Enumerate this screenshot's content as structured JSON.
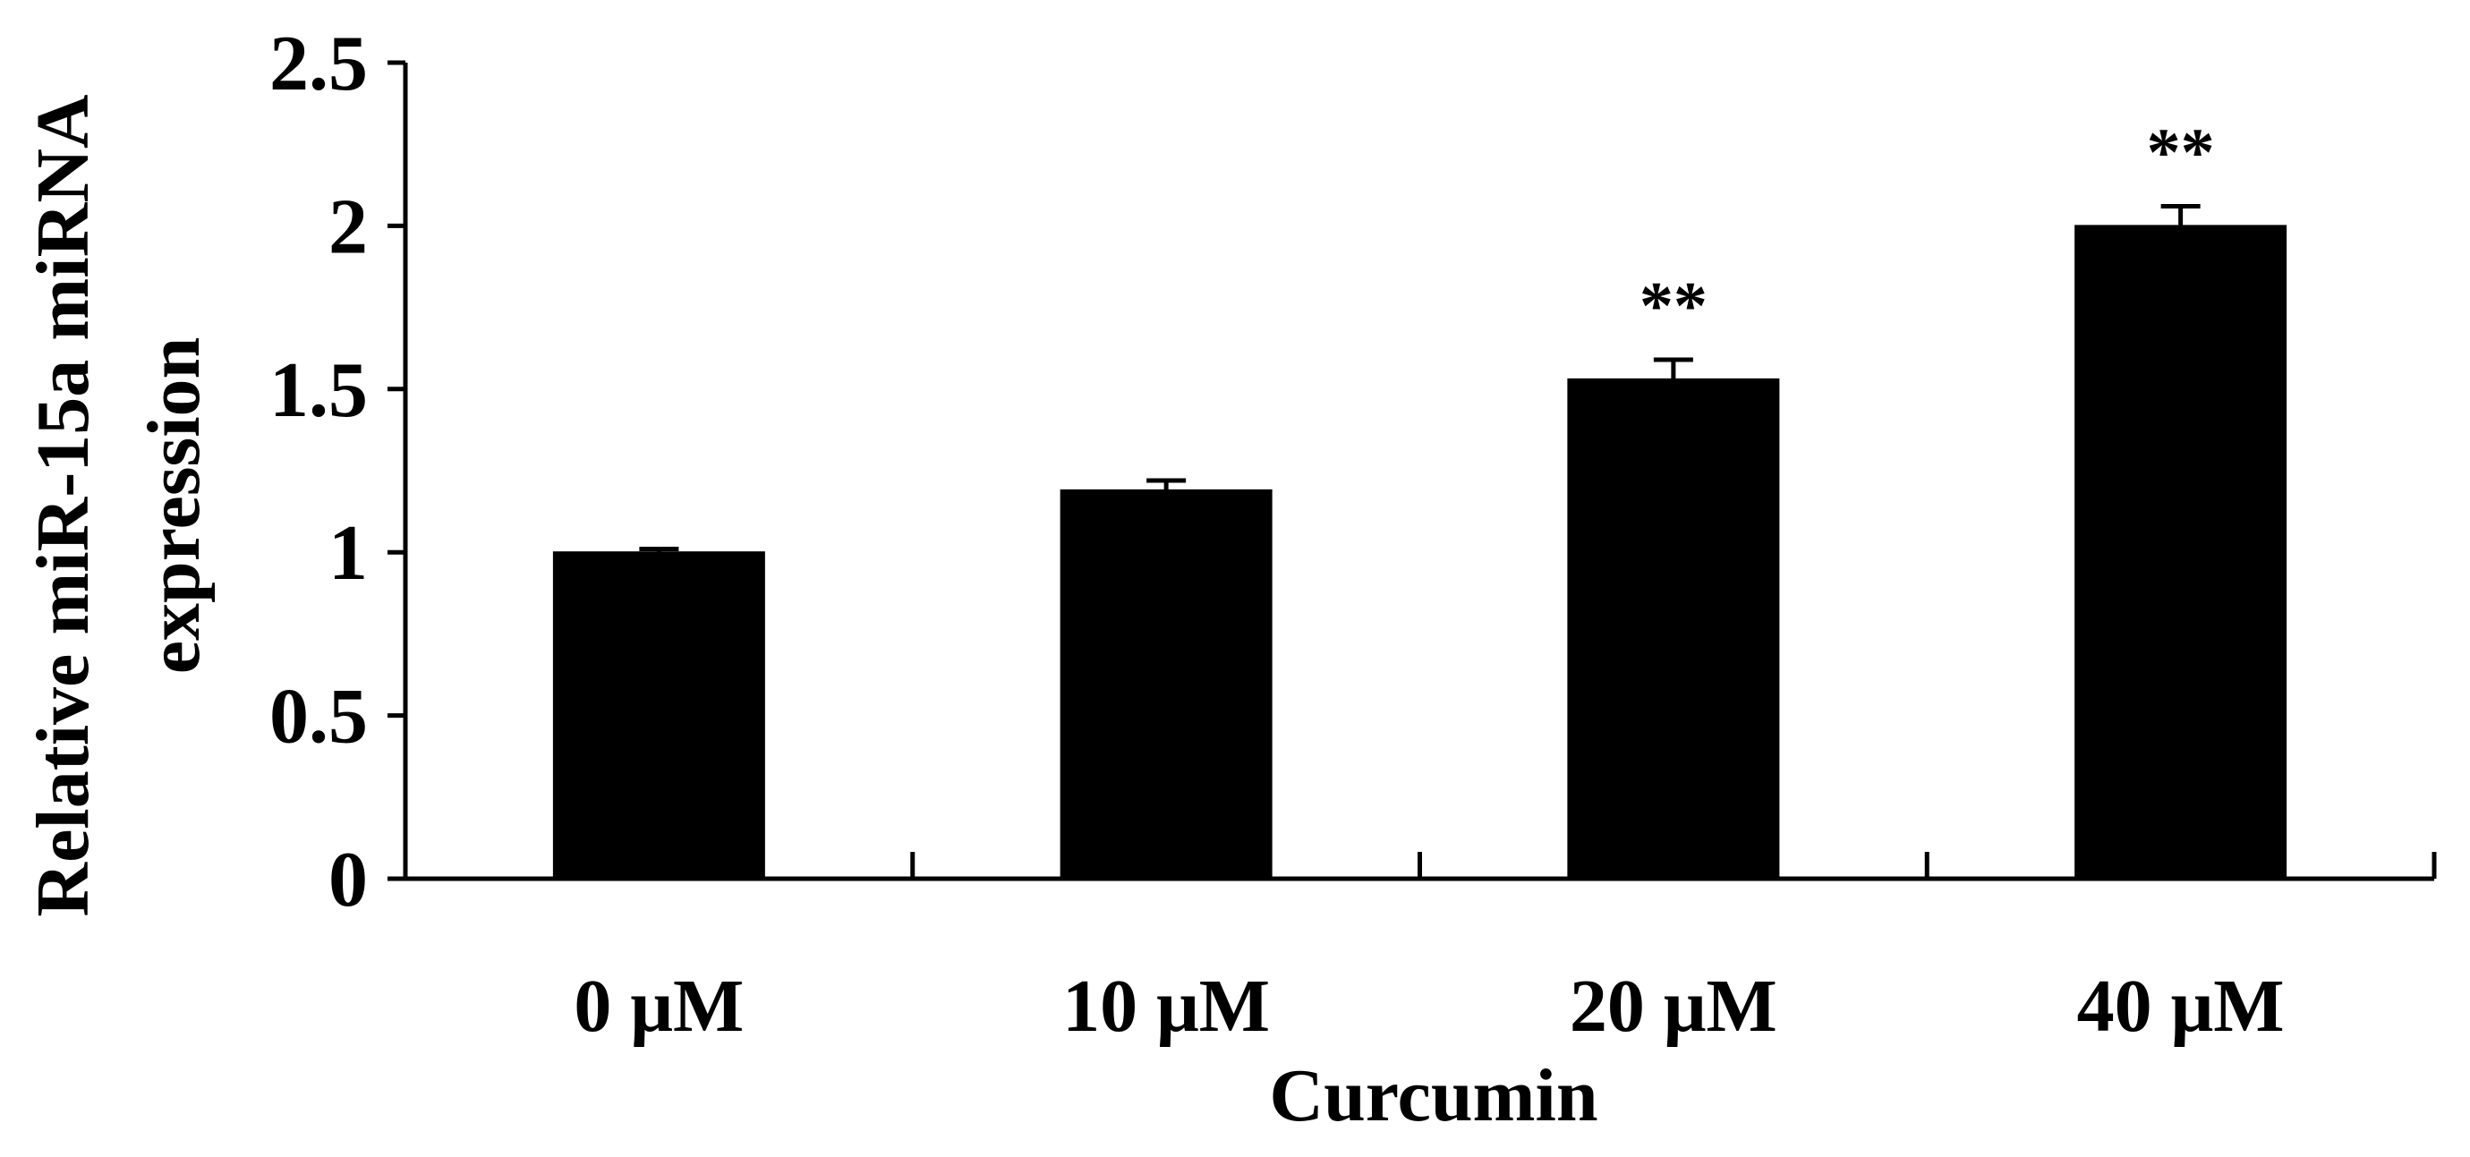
{
  "chart_data": {
    "type": "bar",
    "categories": [
      "0 μM",
      "10 μM",
      "20 μM",
      "40 μM"
    ],
    "series": [
      {
        "values": [
          1.0,
          1.19,
          1.53,
          2.0
        ],
        "errors": [
          0.01,
          0.03,
          0.06,
          0.06
        ]
      }
    ],
    "significance": [
      "",
      "",
      "**",
      "**"
    ],
    "xlabel": "Curcumin",
    "ylabel_lines": [
      "Relative miR-15a miRNA",
      "expression"
    ],
    "ylim": [
      0,
      2.5
    ],
    "yticks": [
      0,
      0.5,
      1,
      1.5,
      2,
      2.5
    ],
    "ytick_labels": [
      "0",
      "0.5",
      "1",
      "1.5",
      "2",
      "2.5"
    ],
    "bar_color": "#000000",
    "grid": false,
    "legend": "none"
  }
}
